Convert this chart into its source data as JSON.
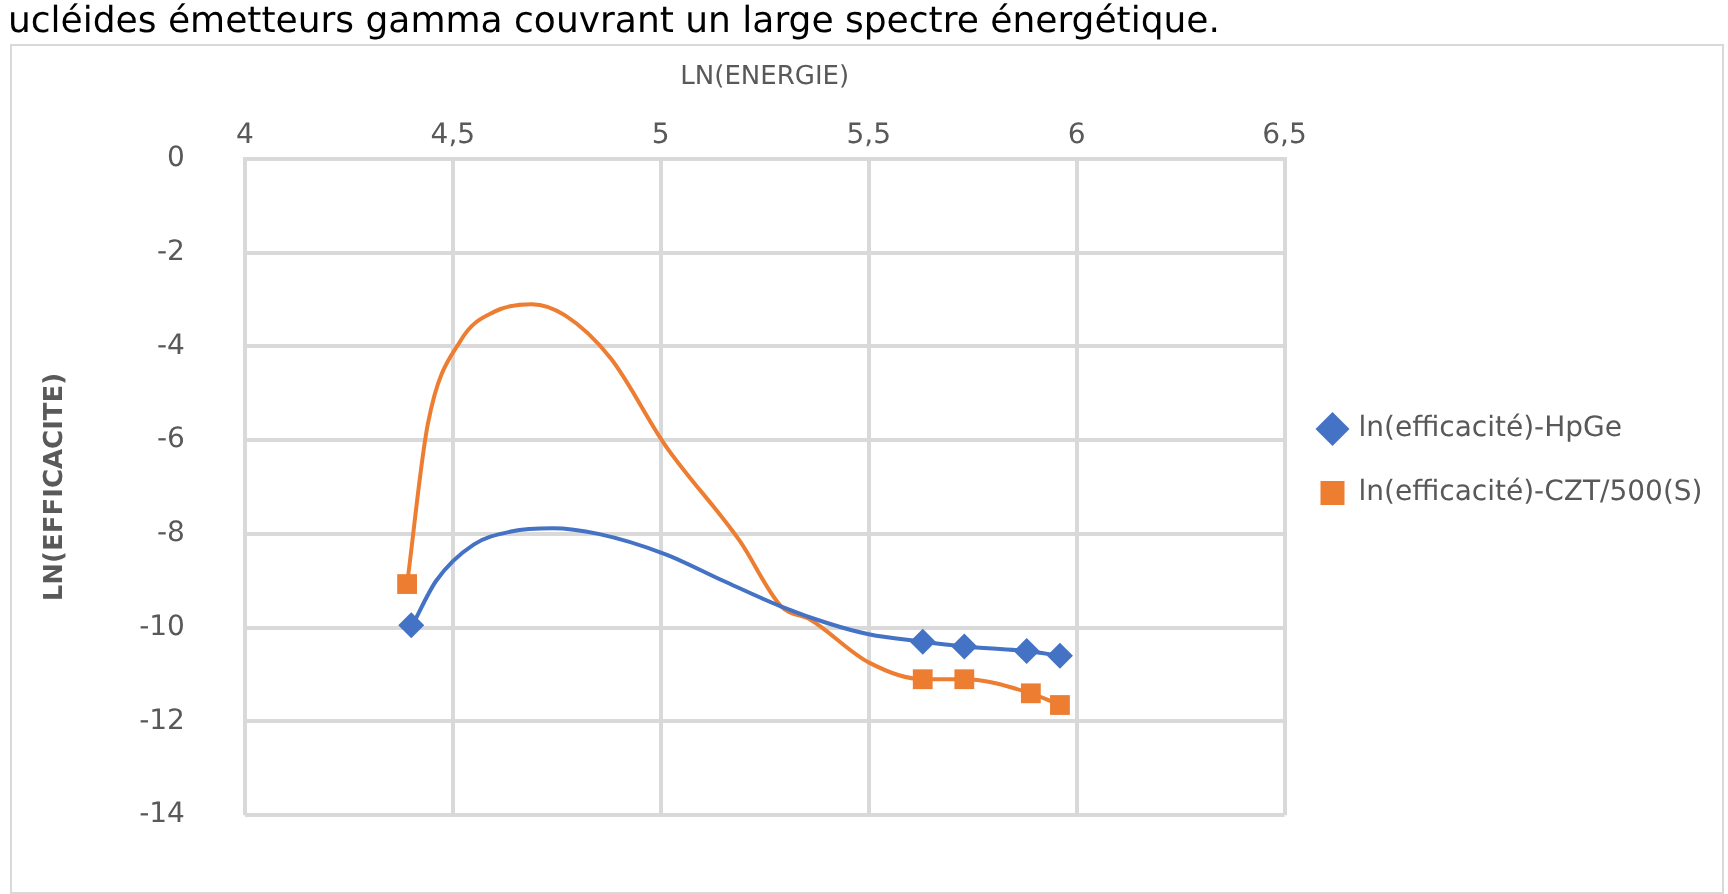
{
  "chart_data": {
    "type": "scatter",
    "annotations": [
      "ucléides émetteurs gamma couvrant un large spectre énergétique."
    ],
    "xlabel": "LN(ENERGIE)",
    "ylabel": "LN(EFFICACITE)",
    "xlim": [
      4,
      6.5
    ],
    "xticks": [
      4,
      {
        "value": 4.5,
        "label": "4,5"
      },
      5,
      {
        "value": 5.5,
        "label": "5,5"
      },
      6,
      {
        "value": 6.5,
        "label": "6,5"
      }
    ],
    "ylim": [
      -14,
      0
    ],
    "yticks": [
      -14,
      -12,
      -10,
      -8,
      -6,
      -4,
      -2,
      0
    ],
    "grid": true,
    "legend": "right",
    "series": [
      {
        "type": "line",
        "color": "#4472c4",
        "marker": "none",
        "x": [
          4.4,
          4.46,
          4.55,
          4.64,
          4.74,
          4.85,
          5.01,
          5.15,
          5.29,
          5.4,
          5.5,
          5.63,
          5.73,
          5.88,
          5.96
        ],
        "values": [
          -10.0,
          -9.0,
          -8.23,
          -7.95,
          -7.88,
          -8.0,
          -8.43,
          -9.0,
          -9.55,
          -9.9,
          -10.14,
          -10.3,
          -10.4,
          -10.5,
          -10.6
        ]
      },
      {
        "type": "line",
        "color": "#ed7d31",
        "marker": "none",
        "x": [
          4.39,
          4.44,
          4.52,
          4.6,
          4.69,
          4.77,
          4.88,
          5.01,
          5.19,
          5.29,
          5.36,
          5.5,
          5.63,
          5.73,
          5.89,
          5.96
        ],
        "values": [
          -9.07,
          -5.65,
          -3.86,
          -3.26,
          -3.1,
          -3.34,
          -4.26,
          -6.1,
          -8.15,
          -9.55,
          -9.83,
          -10.74,
          -11.1,
          -11.1,
          -11.4,
          -11.65
        ]
      },
      {
        "name": "ln(efficacité)-HpGe",
        "color": "#4472c4",
        "marker": "diamond",
        "x": [
          4.4,
          5.63,
          5.73,
          5.88,
          5.96
        ],
        "values": [
          -9.95,
          -10.3,
          -10.4,
          -10.5,
          -10.6
        ]
      },
      {
        "name": "ln(efficacité)-CZT/500(S)",
        "color": "#ed7d31",
        "marker": "square",
        "x": [
          4.39,
          5.63,
          5.73,
          5.89,
          5.96
        ],
        "values": [
          -9.07,
          -11.1,
          -11.1,
          -11.4,
          -11.65
        ]
      }
    ]
  }
}
